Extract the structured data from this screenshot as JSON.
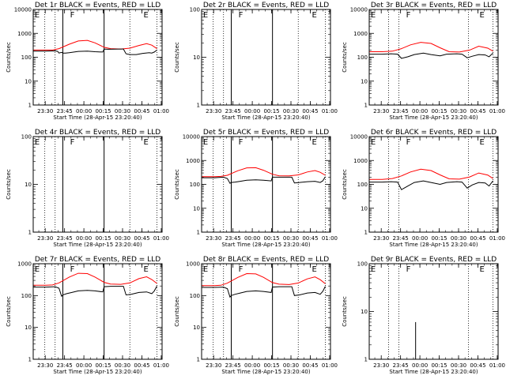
{
  "chart_data": {
    "type": "line",
    "figure_layout": "3x3 grid of log-scale rate plots",
    "x_axis": {
      "label": "Start Time (28-Apr-15 23:20:40)",
      "tick_labels": [
        "23:30",
        "23:45",
        "00:00",
        "00:15",
        "00:30",
        "00:45",
        "01:00"
      ],
      "tick_minutes": [
        9.33,
        24.33,
        39.33,
        54.33,
        69.33,
        84.33,
        99.33
      ],
      "range_minutes": [
        0,
        100
      ]
    },
    "y_axis": {
      "label": "Counts/sec",
      "scale": "log"
    },
    "legend_note": "BLACK = Events, RED = LLD",
    "series_names": [
      "Events",
      "LLD"
    ],
    "series_colors": {
      "Events": "#000000",
      "LLD": "#ff0000"
    },
    "panels": [
      {
        "title": "Det 1r BLACK = Events, RED = LLD",
        "ylim": [
          1,
          10000
        ],
        "y_ticks": [
          {
            "v": 1,
            "label": "1"
          },
          {
            "v": 10,
            "label": "10"
          },
          {
            "v": 100,
            "label": "100"
          },
          {
            "v": 1000,
            "label": "1000"
          },
          {
            "v": 10000,
            "label": "10000"
          }
        ],
        "markers": [
          {
            "text": "E",
            "x": 0.5
          },
          {
            "text": "F",
            "x": 28
          },
          {
            "text": "E",
            "x": 85
          }
        ],
        "dotted_lines": [
          9,
          17,
          75,
          96
        ],
        "solid_lines": [
          23,
          55
        ],
        "series": [
          {
            "name": "LLD",
            "x": [
              0,
              10,
              15,
              20,
              28,
              35,
              42,
              48,
              55,
              60,
              68,
              75,
              82,
              88,
              92,
              96
            ],
            "y": [
              200,
              200,
              200,
              230,
              350,
              480,
              510,
              400,
              260,
              230,
              220,
              240,
              310,
              370,
              320,
              230
            ]
          },
          {
            "name": "Events",
            "x": [
              0,
              10,
              17,
              19,
              20,
              22,
              23,
              25,
              28,
              35,
              42,
              48,
              54,
              55,
              58,
              68,
              70,
              72,
              75,
              80,
              85,
              90,
              92,
              94,
              96
            ],
            "y": [
              180,
              180,
              185,
              175,
              150,
              160,
              150,
              150,
              155,
              175,
              180,
              170,
              165,
              220,
              215,
              220,
              220,
              140,
              130,
              130,
              145,
              155,
              150,
              165,
              200
            ]
          }
        ]
      },
      {
        "title": "Det 2r BLACK = Events, RED = LLD",
        "ylim": [
          1,
          100
        ],
        "y_ticks": [
          {
            "v": 1,
            "label": "1"
          },
          {
            "v": 10,
            "label": "10"
          },
          {
            "v": 100,
            "label": "100"
          }
        ],
        "markers": [
          {
            "text": "E",
            "x": 0.5
          },
          {
            "text": "F",
            "x": 28
          },
          {
            "text": "E",
            "x": 85
          }
        ],
        "dotted_lines": [
          9,
          17,
          75,
          96
        ],
        "solid_lines": [
          23,
          55
        ],
        "series": []
      },
      {
        "title": "Det 3r BLACK = Events, RED = LLD",
        "ylim": [
          1,
          10000
        ],
        "y_ticks": [
          {
            "v": 1,
            "label": "1"
          },
          {
            "v": 10,
            "label": "10"
          },
          {
            "v": 100,
            "label": "100"
          },
          {
            "v": 1000,
            "label": "1000"
          },
          {
            "v": 10000,
            "label": "10000"
          }
        ],
        "markers": [
          {
            "text": "E",
            "x": 0.5
          },
          {
            "text": "F",
            "x": 28
          },
          {
            "text": "E",
            "x": 85
          }
        ],
        "dotted_lines": [
          15,
          23,
          77,
          96
        ],
        "solid_lines": [],
        "series": [
          {
            "name": "LLD",
            "x": [
              0,
              10,
              18,
              25,
              32,
              40,
              48,
              55,
              62,
              70,
              78,
              85,
              92,
              96
            ],
            "y": [
              170,
              170,
              180,
              230,
              330,
              420,
              380,
              250,
              170,
              165,
              200,
              290,
              240,
              180
            ]
          },
          {
            "name": "Events",
            "x": [
              0,
              10,
              17,
              22,
              25,
              30,
              35,
              42,
              48,
              55,
              60,
              68,
              72,
              76,
              80,
              85,
              90,
              93,
              96
            ],
            "y": [
              135,
              135,
              140,
              135,
              90,
              105,
              130,
              150,
              130,
              115,
              135,
              140,
              135,
              95,
              110,
              130,
              125,
              105,
              150
            ]
          }
        ]
      },
      {
        "title": "Det 4r BLACK = Events, RED = LLD",
        "ylim": [
          1,
          100
        ],
        "y_ticks": [
          {
            "v": 1,
            "label": "1"
          },
          {
            "v": 10,
            "label": "10"
          },
          {
            "v": 100,
            "label": "100"
          }
        ],
        "markers": [
          {
            "text": "E",
            "x": 0.5
          },
          {
            "text": "F",
            "x": 28
          },
          {
            "text": "E",
            "x": 85
          }
        ],
        "dotted_lines": [
          9,
          17,
          75,
          96
        ],
        "solid_lines": [
          23,
          55
        ],
        "series": []
      },
      {
        "title": "Det 5r BLACK = Events, RED = LLD",
        "ylim": [
          1,
          10000
        ],
        "y_ticks": [
          {
            "v": 1,
            "label": "1"
          },
          {
            "v": 10,
            "label": "10"
          },
          {
            "v": 100,
            "label": "100"
          },
          {
            "v": 1000,
            "label": "1000"
          },
          {
            "v": 10000,
            "label": "10000"
          }
        ],
        "markers": [
          {
            "text": "E",
            "x": 0.5
          },
          {
            "text": "F",
            "x": 28
          },
          {
            "text": "E",
            "x": 85
          }
        ],
        "dotted_lines": [
          9,
          17,
          75,
          96
        ],
        "solid_lines": [
          23,
          55
        ],
        "series": [
          {
            "name": "LLD",
            "x": [
              0,
              10,
              15,
              20,
              28,
              35,
              42,
              48,
              55,
              60,
              68,
              75,
              82,
              88,
              92,
              96
            ],
            "y": [
              210,
              210,
              215,
              240,
              370,
              490,
              500,
              390,
              265,
              230,
              225,
              250,
              330,
              380,
              320,
              240
            ]
          },
          {
            "name": "Events",
            "x": [
              0,
              10,
              17,
              20,
              22,
              23,
              26,
              30,
              35,
              42,
              48,
              54,
              55,
              60,
              68,
              70,
              72,
              76,
              82,
              88,
              92,
              94,
              96
            ],
            "y": [
              190,
              190,
              200,
              175,
              110,
              120,
              125,
              135,
              150,
              155,
              150,
              140,
              200,
              200,
              200,
              200,
              115,
              120,
              130,
              135,
              120,
              140,
              210
            ]
          }
        ]
      },
      {
        "title": "Det 6r BLACK = Events, RED = LLD",
        "ylim": [
          1,
          10000
        ],
        "y_ticks": [
          {
            "v": 1,
            "label": "1"
          },
          {
            "v": 10,
            "label": "10"
          },
          {
            "v": 100,
            "label": "100"
          },
          {
            "v": 1000,
            "label": "1000"
          },
          {
            "v": 10000,
            "label": "10000"
          }
        ],
        "markers": [
          {
            "text": "E",
            "x": 0.5
          },
          {
            "text": "F",
            "x": 28
          },
          {
            "text": "E",
            "x": 85
          }
        ],
        "dotted_lines": [
          15,
          23,
          77,
          96
        ],
        "solid_lines": [],
        "series": [
          {
            "name": "LLD",
            "x": [
              0,
              10,
              18,
              25,
              32,
              40,
              48,
              55,
              62,
              70,
              78,
              85,
              92,
              96
            ],
            "y": [
              160,
              160,
              175,
              225,
              330,
              430,
              380,
              250,
              170,
              165,
              205,
              300,
              245,
              175
            ]
          },
          {
            "name": "Events",
            "x": [
              0,
              10,
              17,
              22,
              25,
              30,
              35,
              42,
              48,
              55,
              60,
              68,
              72,
              76,
              80,
              85,
              90,
              93,
              96
            ],
            "y": [
              125,
              125,
              130,
              125,
              60,
              85,
              120,
              140,
              120,
              100,
              120,
              130,
              125,
              70,
              95,
              120,
              115,
              85,
              140
            ]
          }
        ]
      },
      {
        "title": "Det 7r BLACK = Events, RED = LLD",
        "ylim": [
          1,
          1000
        ],
        "y_ticks": [
          {
            "v": 1,
            "label": "1"
          },
          {
            "v": 10,
            "label": "10"
          },
          {
            "v": 100,
            "label": "100"
          },
          {
            "v": 1000,
            "label": "1000"
          }
        ],
        "markers": [
          {
            "text": "E",
            "x": 0.5
          },
          {
            "text": "F",
            "x": 28
          },
          {
            "text": "E",
            "x": 85
          }
        ],
        "dotted_lines": [
          9,
          17,
          75,
          96
        ],
        "solid_lines": [
          23,
          55
        ],
        "series": [
          {
            "name": "LLD",
            "x": [
              0,
              10,
              15,
              20,
              28,
              35,
              42,
              48,
              55,
              60,
              68,
              75,
              82,
              88,
              92,
              96
            ],
            "y": [
              210,
              210,
              215,
              250,
              380,
              500,
              490,
              380,
              260,
              230,
              225,
              250,
              340,
              390,
              320,
              240
            ]
          },
          {
            "name": "Events",
            "x": [
              0,
              10,
              17,
              20,
              22,
              23,
              26,
              30,
              35,
              42,
              48,
              54,
              55,
              60,
              68,
              70,
              72,
              76,
              82,
              88,
              92,
              94,
              96
            ],
            "y": [
              185,
              185,
              190,
              170,
              95,
              105,
              115,
              125,
              140,
              145,
              140,
              130,
              190,
              195,
              195,
              195,
              105,
              110,
              125,
              130,
              115,
              140,
              200
            ]
          }
        ]
      },
      {
        "title": "Det 8r BLACK = Events, RED = LLD",
        "ylim": [
          1,
          1000
        ],
        "y_ticks": [
          {
            "v": 1,
            "label": "1"
          },
          {
            "v": 10,
            "label": "10"
          },
          {
            "v": 100,
            "label": "100"
          },
          {
            "v": 1000,
            "label": "1000"
          }
        ],
        "markers": [
          {
            "text": "E",
            "x": 0.5
          },
          {
            "text": "F",
            "x": 28
          },
          {
            "text": "E",
            "x": 85
          }
        ],
        "dotted_lines": [
          9,
          17,
          75,
          96
        ],
        "solid_lines": [
          23,
          55
        ],
        "series": [
          {
            "name": "LLD",
            "x": [
              0,
              10,
              15,
              20,
              28,
              35,
              42,
              48,
              55,
              60,
              68,
              75,
              82,
              88,
              92,
              96
            ],
            "y": [
              205,
              205,
              210,
              245,
              370,
              490,
              480,
              375,
              255,
              228,
              222,
              248,
              335,
              385,
              315,
              235
            ]
          },
          {
            "name": "Events",
            "x": [
              0,
              10,
              17,
              20,
              22,
              23,
              26,
              30,
              35,
              42,
              48,
              54,
              55,
              60,
              68,
              70,
              72,
              76,
              82,
              88,
              92,
              94,
              96
            ],
            "y": [
              180,
              180,
              185,
              165,
              90,
              100,
              110,
              120,
              135,
              140,
              135,
              125,
              185,
              190,
              190,
              190,
              100,
              105,
              120,
              125,
              110,
              135,
              195
            ]
          }
        ]
      },
      {
        "title": "Det 9r BLACK = Events, RED = LLD",
        "ylim": [
          1,
          100
        ],
        "y_ticks": [
          {
            "v": 1,
            "label": "1"
          },
          {
            "v": 10,
            "label": "10"
          },
          {
            "v": 100,
            "label": "100"
          }
        ],
        "markers": [
          {
            "text": "E",
            "x": 0.5
          },
          {
            "text": "F",
            "x": 28
          },
          {
            "text": "E",
            "x": 85
          }
        ],
        "dotted_lines": [
          15,
          23,
          77,
          96
        ],
        "solid_lines": [],
        "spikes": [
          {
            "x": 36,
            "y": 6
          }
        ],
        "series": []
      }
    ]
  }
}
